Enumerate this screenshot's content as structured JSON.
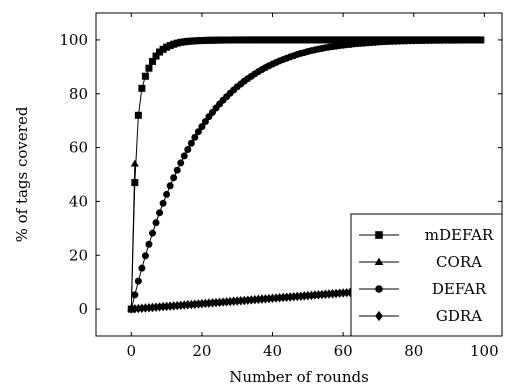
{
  "chart_data": {
    "type": "line",
    "title": "",
    "xlabel": "Number of rounds",
    "ylabel": "% of tags covered",
    "xlim": [
      -10,
      105
    ],
    "ylim": [
      -10,
      110
    ],
    "xticks": [
      0,
      20,
      40,
      60,
      80,
      100
    ],
    "yticks": [
      0,
      20,
      40,
      60,
      80,
      100
    ],
    "grid": false,
    "legend_position": "bottom-right",
    "series": [
      {
        "name": "mDEFAR",
        "marker": "square",
        "x": [
          0,
          1,
          2,
          3,
          4,
          5,
          6,
          7,
          8,
          9,
          10,
          11,
          12,
          13,
          14,
          15,
          16,
          17,
          18,
          19,
          20,
          21,
          22,
          23,
          24,
          25,
          26,
          27,
          28,
          29,
          30,
          31,
          32,
          33,
          34,
          35,
          36,
          37,
          38,
          39,
          40,
          41,
          42,
          43,
          44,
          45,
          46,
          47,
          48,
          49,
          50,
          51,
          52,
          53,
          54,
          55,
          56,
          57,
          58,
          59,
          60,
          61,
          62,
          63,
          64,
          65,
          66,
          67,
          68,
          69,
          70,
          71,
          72,
          73,
          74,
          75,
          76,
          77,
          78,
          79,
          80,
          81,
          82,
          83,
          84,
          85,
          86,
          87,
          88,
          89,
          90,
          91,
          92,
          93,
          94,
          95,
          96,
          97,
          98,
          99
        ],
        "y": [
          0,
          47,
          72,
          82,
          86.5,
          89.5,
          92,
          94,
          95.5,
          96.5,
          97.3,
          97.9,
          98.4,
          98.8,
          99.1,
          99.3,
          99.45,
          99.55,
          99.65,
          99.72,
          99.78,
          99.82,
          99.86,
          99.89,
          99.91,
          99.93,
          99.95,
          99.96,
          99.97,
          99.98,
          99.98,
          99.99,
          99.99,
          99.99,
          100,
          100,
          100,
          100,
          100,
          100,
          100,
          100,
          100,
          100,
          100,
          100,
          100,
          100,
          100,
          100,
          100,
          100,
          100,
          100,
          100,
          100,
          100,
          100,
          100,
          100,
          100,
          100,
          100,
          100,
          100,
          100,
          100,
          100,
          100,
          100,
          100,
          100,
          100,
          100,
          100,
          100,
          100,
          100,
          100,
          100,
          100,
          100,
          100,
          100,
          100,
          100,
          100,
          100,
          100,
          100,
          100,
          100,
          100,
          100,
          100,
          100,
          100,
          100,
          100,
          100
        ]
      },
      {
        "name": "CORA",
        "marker": "triangle",
        "x": [
          0,
          1
        ],
        "y": [
          0,
          54
        ]
      },
      {
        "name": "DEFAR",
        "marker": "circle",
        "x": [
          0,
          1,
          2,
          3,
          4,
          5,
          6,
          7,
          8,
          9,
          10,
          11,
          12,
          13,
          14,
          15,
          16,
          17,
          18,
          19,
          20,
          21,
          22,
          23,
          24,
          25,
          26,
          27,
          28,
          29,
          30,
          31,
          32,
          33,
          34,
          35,
          36,
          37,
          38,
          39,
          40,
          41,
          42,
          43,
          44,
          45,
          46,
          47,
          48,
          49,
          50,
          51,
          52,
          53,
          54,
          55,
          56,
          57,
          58,
          59,
          60,
          61,
          62,
          63,
          64,
          65,
          66,
          67,
          68,
          69,
          70,
          71,
          72,
          73,
          74,
          75,
          76,
          77,
          78,
          79,
          80,
          81,
          82,
          83,
          84,
          85,
          86,
          87,
          88,
          89,
          90,
          91,
          92,
          93,
          94,
          95,
          96,
          97,
          98,
          99
        ],
        "y": [
          0,
          5.3,
          10.4,
          15.2,
          19.8,
          24.1,
          28.2,
          32.1,
          35.8,
          39.3,
          42.6,
          45.8,
          48.8,
          51.6,
          54.3,
          56.9,
          59.3,
          61.6,
          63.8,
          65.9,
          67.8,
          69.7,
          71.5,
          73.1,
          74.7,
          76.2,
          77.6,
          78.9,
          80.2,
          81.4,
          82.6,
          83.6,
          84.7,
          85.6,
          86.5,
          87.4,
          88.2,
          89,
          89.7,
          90.4,
          91,
          91.6,
          92.2,
          92.7,
          93.2,
          93.7,
          94.1,
          94.6,
          95,
          95.3,
          95.7,
          96,
          96.3,
          96.6,
          96.8,
          97.1,
          97.3,
          97.5,
          97.7,
          97.9,
          98,
          98.2,
          98.3,
          98.5,
          98.6,
          98.7,
          98.8,
          98.9,
          99,
          99.1,
          99.2,
          99.3,
          99.35,
          99.4,
          99.45,
          99.5,
          99.55,
          99.6,
          99.63,
          99.66,
          99.69,
          99.72,
          99.74,
          99.76,
          99.78,
          99.8,
          99.82,
          99.84,
          99.85,
          99.86,
          99.87,
          99.88,
          99.89,
          99.9,
          99.91,
          99.92,
          99.93,
          99.93,
          99.94,
          99.94
        ]
      },
      {
        "name": "GDRA",
        "marker": "diamond",
        "x": [
          0,
          1,
          2,
          3,
          4,
          5,
          6,
          7,
          8,
          9,
          10,
          11,
          12,
          13,
          14,
          15,
          16,
          17,
          18,
          19,
          20,
          21,
          22,
          23,
          24,
          25,
          26,
          27,
          28,
          29,
          30,
          31,
          32,
          33,
          34,
          35,
          36,
          37,
          38,
          39,
          40,
          41,
          42,
          43,
          44,
          45,
          46,
          47,
          48,
          49,
          50,
          51,
          52,
          53,
          54,
          55,
          56,
          57,
          58,
          59,
          60,
          61,
          62,
          63,
          64,
          65,
          66,
          67,
          68,
          69,
          70,
          71,
          72,
          73,
          74,
          75,
          76,
          77,
          78,
          79,
          80,
          81,
          82,
          83,
          84,
          85,
          86,
          87,
          88,
          89,
          90,
          91,
          92,
          93,
          94,
          95,
          96,
          97,
          98,
          99
        ],
        "y": [
          0,
          0.1,
          0.2,
          0.3,
          0.4,
          0.5,
          0.6,
          0.7,
          0.8,
          0.9,
          1,
          1.1,
          1.2,
          1.3,
          1.4,
          1.5,
          1.6,
          1.7,
          1.8,
          1.9,
          2,
          2.1,
          2.2,
          2.3,
          2.4,
          2.5,
          2.6,
          2.7,
          2.8,
          2.9,
          3,
          3.1,
          3.2,
          3.3,
          3.4,
          3.5,
          3.6,
          3.7,
          3.8,
          3.9,
          4,
          4.1,
          4.2,
          4.3,
          4.4,
          4.5,
          4.6,
          4.7,
          4.8,
          4.9,
          5,
          5.1,
          5.2,
          5.3,
          5.4,
          5.5,
          5.6,
          5.7,
          5.8,
          5.9,
          6,
          6.1,
          6.2,
          6.3,
          6.4,
          6.5,
          6.6,
          6.7,
          6.8,
          6.9,
          7,
          7.1,
          7.2,
          7.3,
          7.4,
          7.5,
          7.6,
          7.7,
          7.8,
          7.9,
          8,
          8.1,
          8.2,
          8.3,
          8.4,
          8.5,
          8.6,
          8.7,
          8.8,
          8.9,
          9,
          9.1,
          9.2,
          9.3,
          9.4,
          9.5,
          9.6,
          9.7,
          9.8,
          9.9
        ]
      }
    ]
  }
}
